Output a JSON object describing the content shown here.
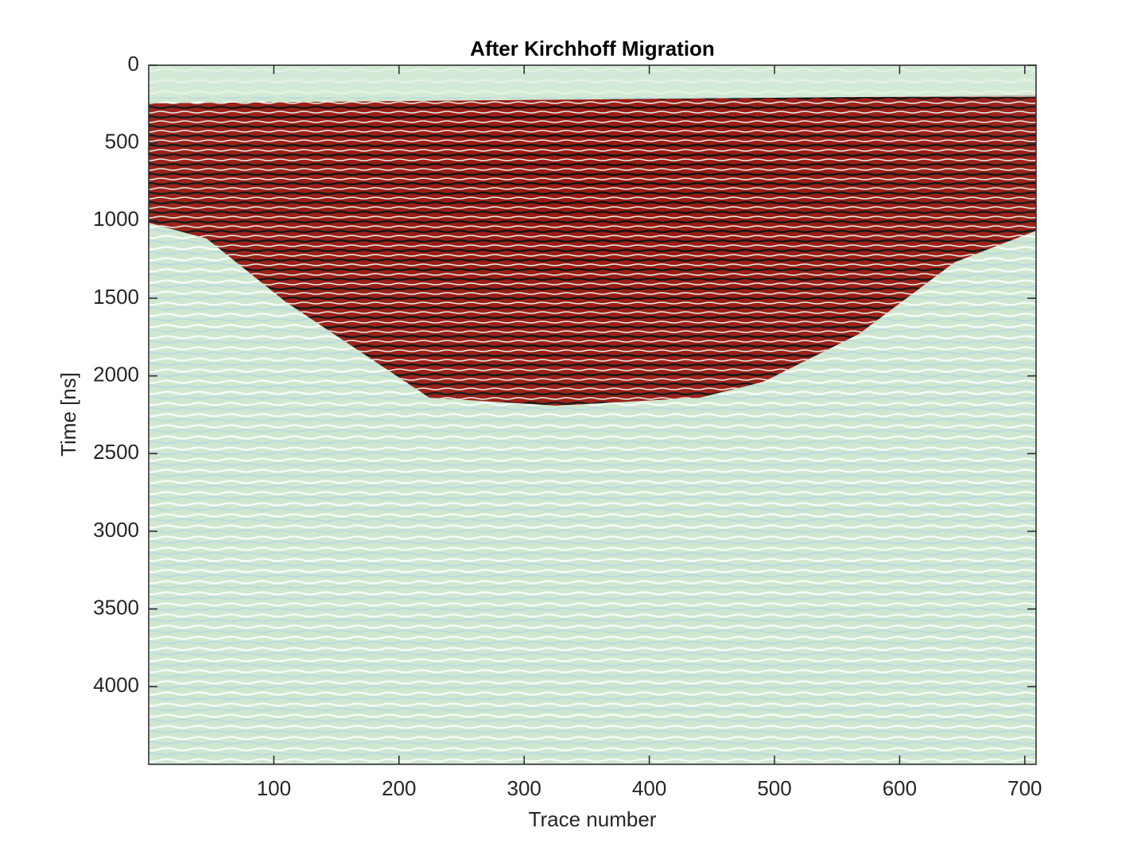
{
  "chart_data": {
    "type": "image",
    "title": "After Kirchhoff Migration",
    "xlabel": "Trace number",
    "ylabel": "Time [ns]",
    "xlim": [
      0,
      709
    ],
    "ylim": [
      0,
      4500
    ],
    "y_reversed": true,
    "xticks": [
      100,
      200,
      300,
      400,
      500,
      600,
      700
    ],
    "yticks": [
      0,
      500,
      1000,
      1500,
      2000,
      2500,
      3000,
      3500,
      4000
    ]
  }
}
